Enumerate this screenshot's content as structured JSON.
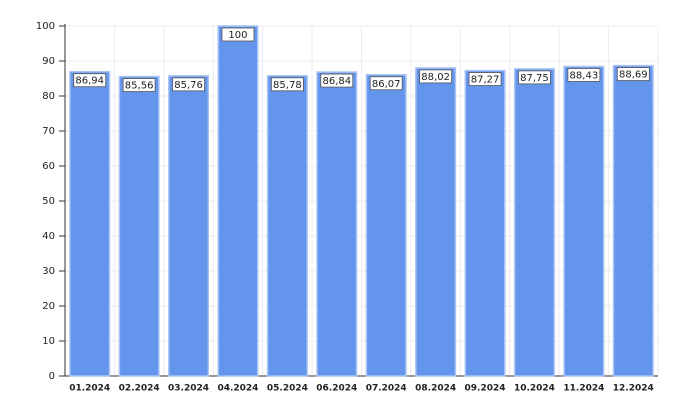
{
  "chart_data": {
    "type": "bar",
    "categories": [
      "01.2024",
      "02.2024",
      "03.2024",
      "04.2024",
      "05.2024",
      "06.2024",
      "07.2024",
      "08.2024",
      "09.2024",
      "10.2024",
      "11.2024",
      "12.2024"
    ],
    "values": [
      86.94,
      85.56,
      85.76,
      100,
      85.78,
      86.84,
      86.07,
      88.02,
      87.27,
      87.75,
      88.43,
      88.69
    ],
    "value_labels": [
      "86,94",
      "85,56",
      "85,76",
      "100",
      "85,78",
      "86,84",
      "86,07",
      "88,02",
      "87,27",
      "87,75",
      "88,43",
      "88,69"
    ],
    "color": "#6495ed",
    "ylim": [
      0,
      100
    ],
    "yticks": [
      0,
      10,
      20,
      30,
      40,
      50,
      60,
      70,
      80,
      90,
      100
    ],
    "grid": true
  }
}
